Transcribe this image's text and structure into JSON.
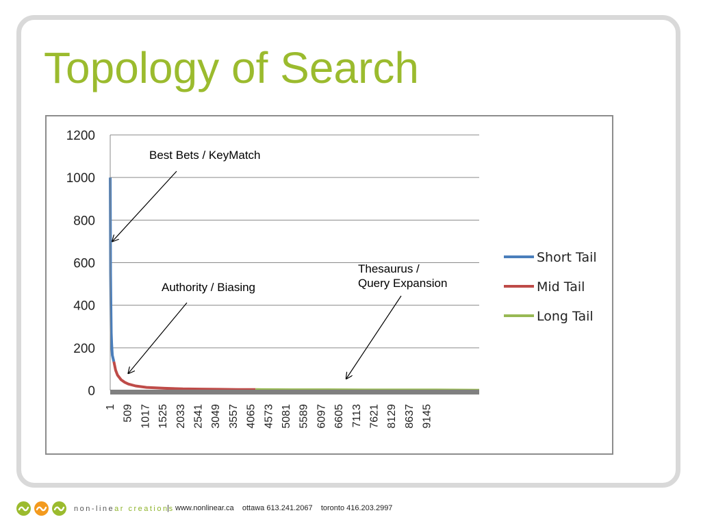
{
  "slide": {
    "title": "Topology of Search"
  },
  "colors": {
    "title": "#9bbb2e",
    "short_tail": "#4a7ebb",
    "mid_tail": "#be4b48",
    "long_tail": "#98b954",
    "axis_band": "#808080",
    "logo_green": "#9bbb2e",
    "logo_orange": "#f39a1e"
  },
  "chart_data": {
    "type": "line",
    "title": "",
    "xlabel": "",
    "ylabel": "",
    "ylim": [
      0,
      1200
    ],
    "yticks": [
      "0",
      "200",
      "400",
      "600",
      "800",
      "1000",
      "1200"
    ],
    "x_tick_labels": [
      "1",
      "509",
      "1017",
      "1525",
      "2033",
      "2541",
      "3049",
      "3557",
      "4065",
      "4573",
      "5081",
      "5589",
      "6097",
      "6605",
      "7113",
      "7621",
      "8129",
      "8637",
      "9145"
    ],
    "xlim": [
      1,
      10160
    ],
    "grid": true,
    "legend_position": "right",
    "series": [
      {
        "name": "Short Tail",
        "x": [
          1,
          5,
          10,
          20,
          30,
          40,
          50,
          60,
          80,
          100
        ],
        "values": [
          1000,
          840,
          550,
          400,
          270,
          220,
          190,
          165,
          150,
          135
        ]
      },
      {
        "name": "Mid Tail",
        "x": [
          100,
          150,
          200,
          300,
          400,
          500,
          700,
          1000,
          1500,
          2000,
          2500,
          3000,
          3500,
          4000
        ],
        "values": [
          135,
          95,
          72,
          50,
          38,
          30,
          21,
          14,
          10,
          7,
          6,
          5,
          4,
          4
        ]
      },
      {
        "name": "Long Tail",
        "x": [
          4000,
          5000,
          6000,
          7000,
          8000,
          9000,
          10160
        ],
        "values": [
          4,
          3,
          3,
          2,
          2,
          2,
          1
        ]
      }
    ],
    "annotations": [
      {
        "lines": [
          "Best Bets / KeyMatch"
        ],
        "target_x": 60,
        "target_y": 700
      },
      {
        "lines": [
          "Authority / Biasing"
        ],
        "target_x": 500,
        "target_y": 80
      },
      {
        "lines": [
          "Thesaurus /",
          "Query Expansion"
        ],
        "target_x": 6500,
        "target_y": 55
      }
    ]
  },
  "footer": {
    "brand_part1": "non-line",
    "brand_part2": "ar creations",
    "contact": "|   www.nonlinear.ca    ottawa 613.241.2067    toronto 416.203.2997"
  }
}
